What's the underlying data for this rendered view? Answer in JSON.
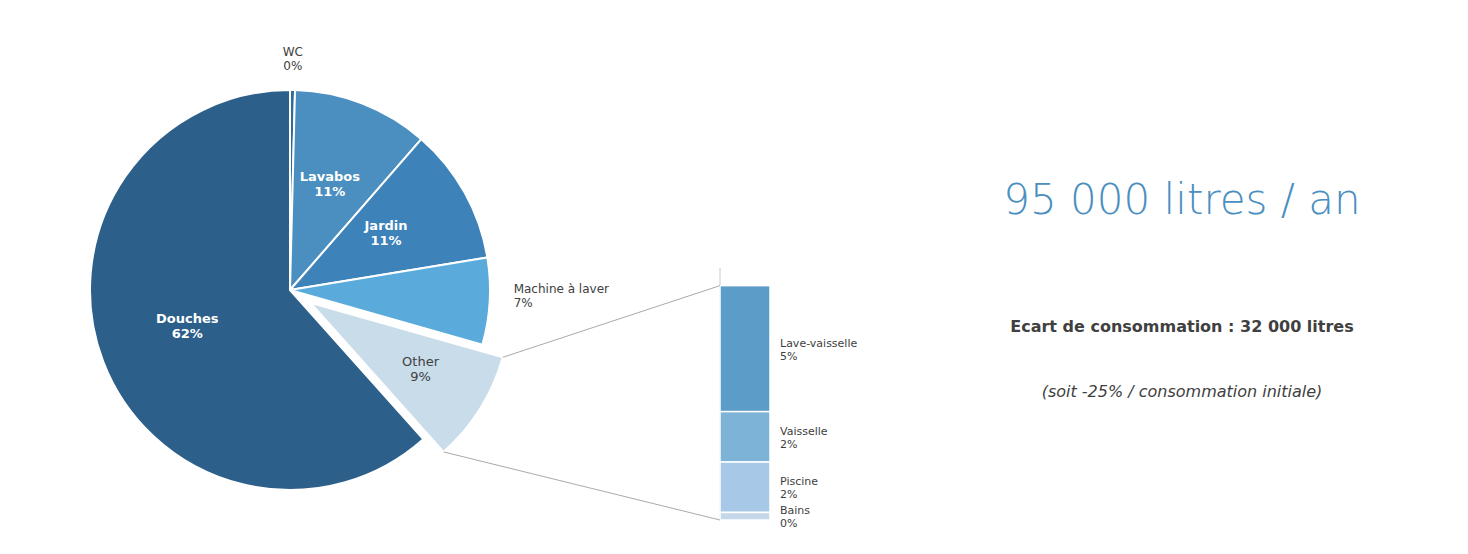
{
  "chart_data": [
    {
      "type": "pie",
      "categories": [
        "WC",
        "Lavabos",
        "Jardin",
        "Machine à laver",
        "Other",
        "Douches"
      ],
      "values": [
        0.4,
        11,
        11,
        7,
        9,
        61.6
      ],
      "value_labels": [
        "0%",
        "11%",
        "11%",
        "7%",
        "9%",
        "62%"
      ],
      "colors": [
        "#2e6b9e",
        "#4a8fc0",
        "#3d82b8",
        "#5aabdb",
        "#c8dcea",
        "#2c5f8a"
      ],
      "data_labels": true,
      "annotations": [
        {
          "text": "95 000 litres / an",
          "color": "#4a8fc0"
        },
        {
          "text": "Ecart de consommation : 32 000 litres",
          "color": "#404040"
        },
        {
          "text": "(soit -25% / consommation initiale)",
          "color": "#404040"
        }
      ]
    },
    {
      "type": "bar",
      "stacked": true,
      "categories": [
        null
      ],
      "series": [
        {
          "name": "Lave-vaisselle",
          "color": "#5b9cc9",
          "values": [
            5
          ],
          "value_labels": [
            "5%"
          ]
        },
        {
          "name": "Vaisselle",
          "color": "#7eb3d8",
          "values": [
            2
          ],
          "value_labels": [
            "2%"
          ]
        },
        {
          "name": "Piscine",
          "color": "#a8c8e8",
          "values": [
            2
          ],
          "value_labels": [
            "2%"
          ]
        },
        {
          "name": "Bains",
          "color": "#c5d8ea",
          "values": [
            0.3
          ],
          "value_labels": [
            "0%"
          ]
        }
      ],
      "ylim": [
        0,
        10
      ],
      "tick_labels": false,
      "data_labels": true
    }
  ]
}
